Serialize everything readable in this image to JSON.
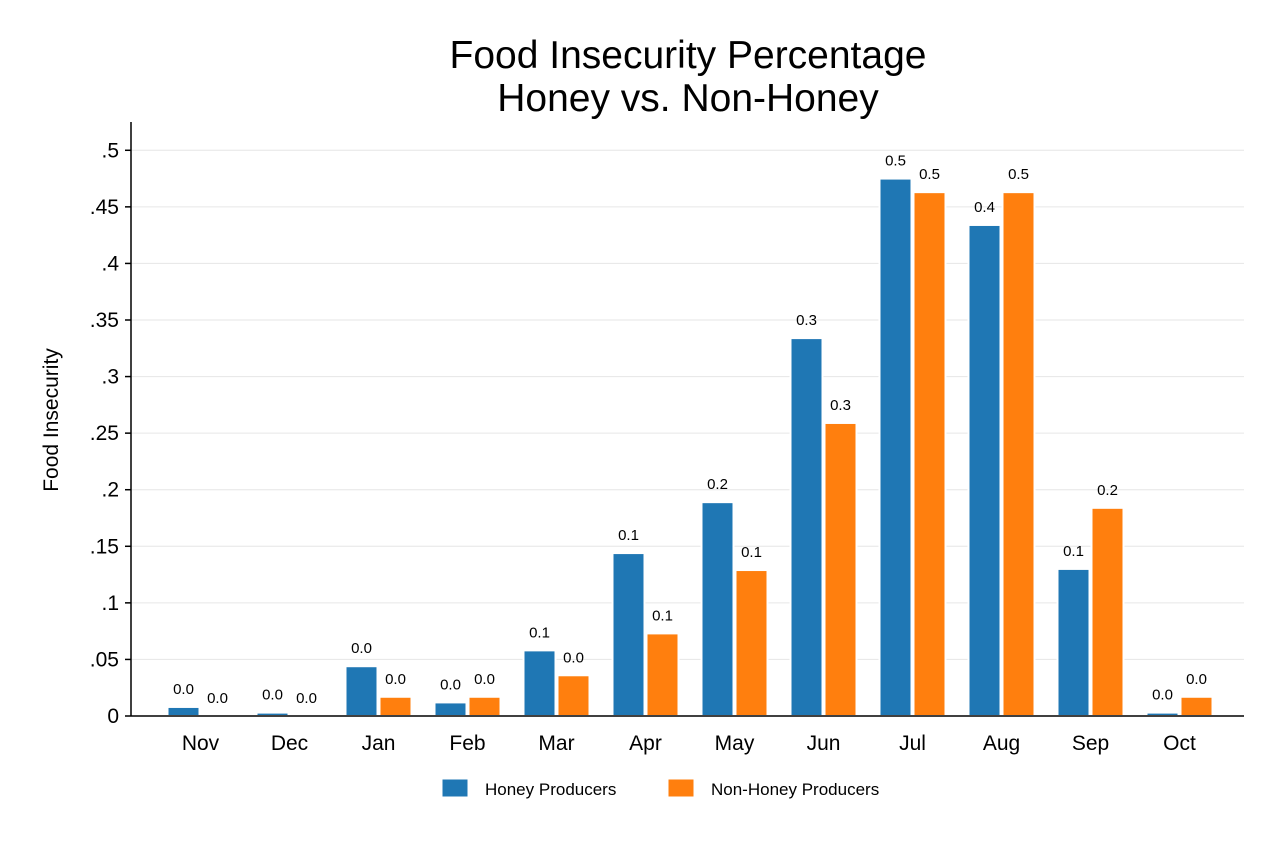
{
  "chart_data": {
    "type": "bar",
    "title": [
      "Food Insecurity Percentage",
      "Honey vs. Non-Honey"
    ],
    "xlabel": "",
    "ylabel": "Food Insecurity",
    "ylim": [
      0,
      0.525
    ],
    "yticks": [
      0,
      0.05,
      0.1,
      0.15,
      0.2,
      0.25,
      0.3,
      0.35,
      0.4,
      0.45,
      0.5
    ],
    "ytick_labels": [
      "0",
      ".05",
      ".1",
      ".15",
      ".2",
      ".25",
      ".3",
      ".35",
      ".4",
      ".45",
      ".5"
    ],
    "categories": [
      "Nov",
      "Dec",
      "Jan",
      "Feb",
      "Mar",
      "Apr",
      "May",
      "Jun",
      "Jul",
      "Aug",
      "Sep",
      "Oct"
    ],
    "series": [
      {
        "name": "Honey Producers",
        "color": "#1f77b4",
        "values": [
          0.008,
          0.003,
          0.044,
          0.012,
          0.058,
          0.144,
          0.189,
          0.334,
          0.475,
          0.434,
          0.13,
          0.003
        ],
        "data_labels": [
          "0.0",
          "0.0",
          "0.0",
          "0.0",
          "0.1",
          "0.1",
          "0.2",
          "0.3",
          "0.5",
          "0.4",
          "0.1",
          "0.0"
        ]
      },
      {
        "name": "Non-Honey Producers",
        "color": "#ff7f0e",
        "values": [
          0.0,
          0.0,
          0.017,
          0.017,
          0.036,
          0.073,
          0.129,
          0.259,
          0.463,
          0.463,
          0.184,
          0.017
        ],
        "data_labels": [
          "0.0",
          "0.0",
          "0.0",
          "0.0",
          "0.0",
          "0.1",
          "0.1",
          "0.3",
          "0.5",
          "0.5",
          "0.2",
          "0.0"
        ]
      }
    ],
    "grid": true,
    "legend_position": "bottom"
  }
}
